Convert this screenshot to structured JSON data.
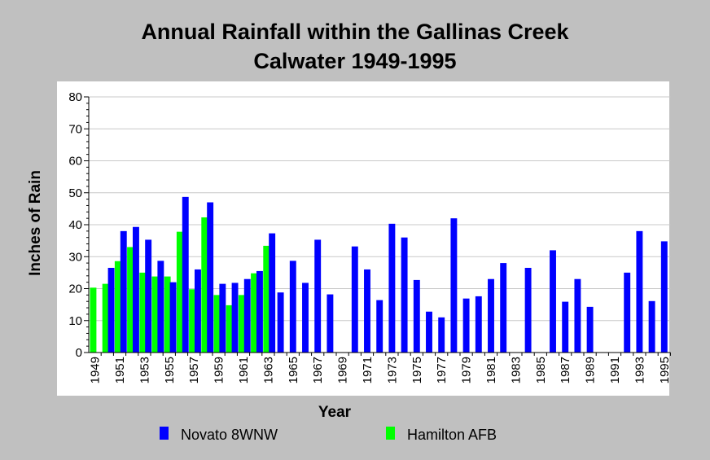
{
  "chart_data": {
    "type": "bar",
    "title": "Annual Rainfall within the Gallinas Creek",
    "subtitle": "Calwater 1949-1995",
    "xlabel": "Year",
    "ylabel": "Inches of Rain",
    "ylim": [
      0,
      80
    ],
    "yticks": [
      0,
      10,
      20,
      30,
      40,
      50,
      60,
      70,
      80
    ],
    "grid": true,
    "legend_position": "bottom",
    "categories": [
      "1949",
      "1950",
      "1951",
      "1952",
      "1953",
      "1954",
      "1955",
      "1956",
      "1957",
      "1958",
      "1959",
      "1960",
      "1961",
      "1962",
      "1963",
      "1964",
      "1965",
      "1966",
      "1967",
      "1968",
      "1969",
      "1970",
      "1971",
      "1972",
      "1973",
      "1974",
      "1975",
      "1976",
      "1977",
      "1978",
      "1979",
      "1980",
      "1981",
      "1982",
      "1983",
      "1984",
      "1985",
      "1986",
      "1987",
      "1988",
      "1989",
      "1990",
      "1991",
      "1992",
      "1993",
      "1994",
      "1995"
    ],
    "tick_labels": [
      "1949",
      "1951",
      "1953",
      "1955",
      "1957",
      "1959",
      "1961",
      "1963",
      "1965",
      "1967",
      "1969",
      "1971",
      "1973",
      "1975",
      "1977",
      "1979",
      "1981",
      "1983",
      "1985",
      "1987",
      "1989",
      "1991",
      "1993",
      "1995"
    ],
    "series": [
      {
        "name": "Novato 8WNW",
        "color": "#0000ff",
        "values": [
          null,
          26.5,
          38,
          39.3,
          35.3,
          28.7,
          22,
          48.7,
          26,
          47,
          21.5,
          21.8,
          23,
          25.5,
          37.3,
          18.8,
          28.7,
          21.8,
          35.3,
          18.2,
          null,
          33.2,
          26,
          16.4,
          40.3,
          36,
          22.7,
          12.8,
          11,
          42,
          16.9,
          17.6,
          23,
          28,
          null,
          26.5,
          null,
          32,
          15.9,
          23,
          14.3,
          null,
          null,
          25,
          38,
          16.1,
          34.8
        ]
      },
      {
        "name": "Hamilton AFB",
        "color": "#00ff00",
        "values": [
          20.3,
          21.5,
          28.6,
          33,
          25,
          23.8,
          23.8,
          37.8,
          19.8,
          42.3,
          18,
          14.8,
          18,
          24.8,
          33.4,
          null,
          null,
          null,
          null,
          null,
          null,
          null,
          null,
          null,
          null,
          null,
          null,
          null,
          null,
          null,
          null,
          null,
          null,
          null,
          null,
          null,
          null,
          null,
          null,
          null,
          null,
          null,
          null,
          null,
          null,
          null,
          null
        ]
      }
    ]
  }
}
